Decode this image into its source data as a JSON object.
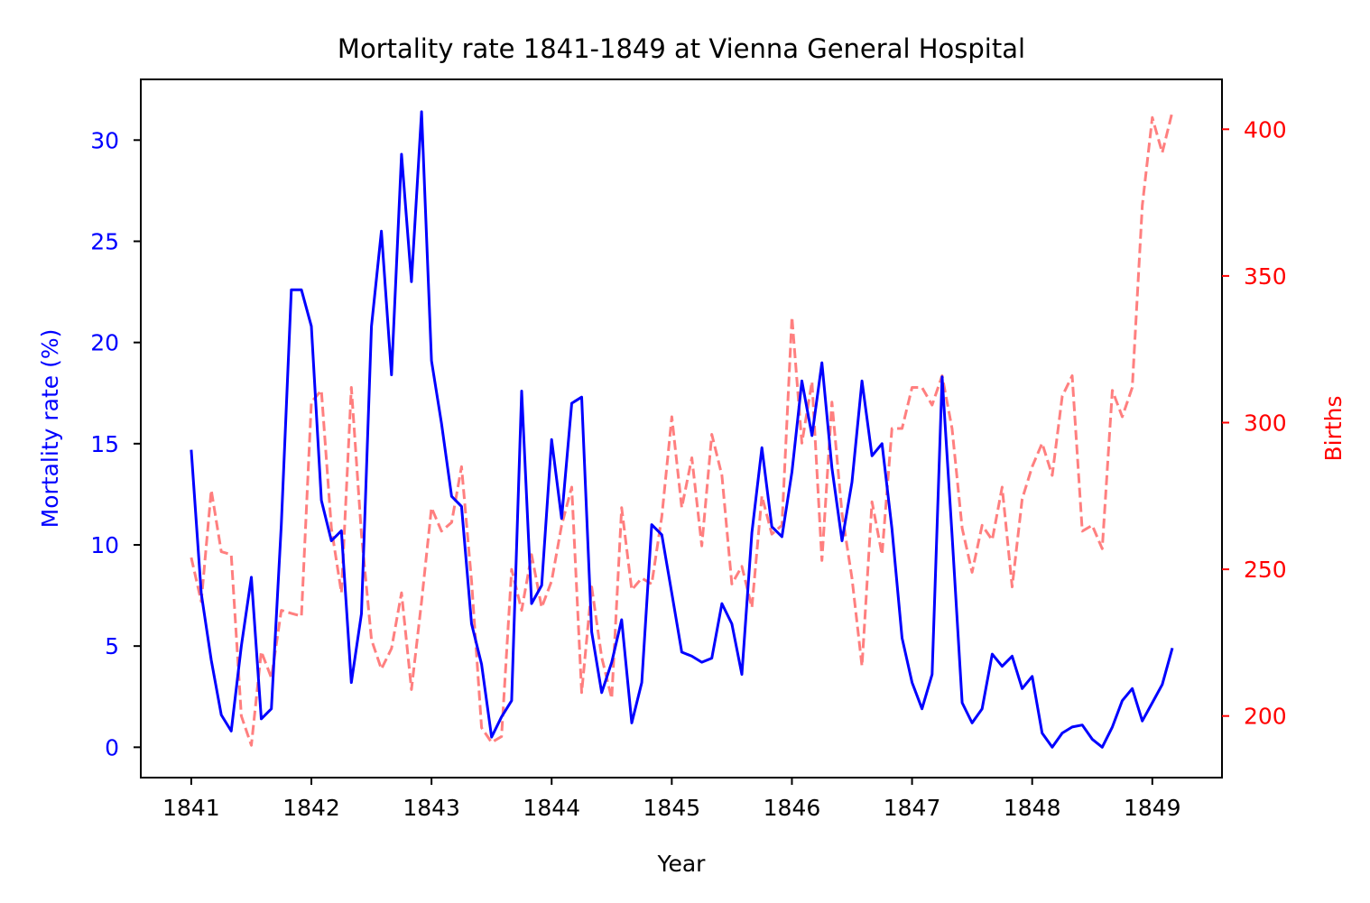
{
  "colors": {
    "primary_axis": "#0000ff",
    "secondary_axis": "#ff0000",
    "secondary_line": "#ff7f7f"
  },
  "chart_data": {
    "type": "line",
    "title": "Mortality rate 1841-1849 at Vienna General Hospital",
    "xlabel": "Year",
    "ylabel": "Mortality rate (%)",
    "y2label": "Births",
    "xlim": [
      1840.58,
      1849.58
    ],
    "ylim": [
      -1.5,
      33.0
    ],
    "y2lim": [
      179,
      417
    ],
    "xticks": [
      1841,
      1842,
      1843,
      1844,
      1845,
      1846,
      1847,
      1848,
      1849
    ],
    "yticks": [
      0,
      5,
      10,
      15,
      20,
      25,
      30
    ],
    "y2ticks": [
      200,
      250,
      300,
      350,
      400
    ],
    "grid": false,
    "legend": "none",
    "series": [
      {
        "axis": "left",
        "style": "solid",
        "x": [
          1841.0,
          1841.083,
          1841.167,
          1841.25,
          1841.333,
          1841.417,
          1841.5,
          1841.583,
          1841.667,
          1841.75,
          1841.833,
          1841.917,
          1842.0,
          1842.083,
          1842.167,
          1842.25,
          1842.333,
          1842.417,
          1842.5,
          1842.583,
          1842.667,
          1842.75,
          1842.833,
          1842.917,
          1843.0,
          1843.083,
          1843.167,
          1843.25,
          1843.333,
          1843.417,
          1843.5,
          1843.583,
          1843.667,
          1843.75,
          1843.833,
          1843.917,
          1844.0,
          1844.083,
          1844.167,
          1844.25,
          1844.333,
          1844.417,
          1844.5,
          1844.583,
          1844.667,
          1844.75,
          1844.833,
          1844.917,
          1845.0,
          1845.083,
          1845.167,
          1845.25,
          1845.333,
          1845.417,
          1845.5,
          1845.583,
          1845.667,
          1845.75,
          1845.833,
          1845.917,
          1846.0,
          1846.083,
          1846.167,
          1846.25,
          1846.333,
          1846.417,
          1846.5,
          1846.583,
          1846.667,
          1846.75,
          1846.833,
          1846.917,
          1847.0,
          1847.083,
          1847.167,
          1847.25,
          1847.333,
          1847.417,
          1847.5,
          1847.583,
          1847.667,
          1847.75,
          1847.833,
          1847.917,
          1848.0,
          1848.083,
          1848.167,
          1848.25,
          1848.333,
          1848.417,
          1848.5,
          1848.583,
          1848.667,
          1848.75,
          1848.833,
          1848.917,
          1849.0,
          1849.083,
          1849.167
        ],
        "values": [
          14.7,
          7.6,
          4.3,
          1.6,
          0.8,
          5.0,
          8.4,
          1.4,
          1.9,
          11.0,
          22.6,
          22.6,
          20.8,
          12.2,
          10.2,
          10.7,
          3.2,
          6.6,
          20.8,
          25.5,
          18.4,
          29.3,
          23.0,
          31.4,
          19.1,
          16.0,
          12.4,
          11.9,
          6.1,
          4.1,
          0.5,
          1.5,
          2.3,
          17.6,
          7.1,
          8.0,
          15.2,
          11.3,
          17.0,
          17.3,
          5.7,
          2.7,
          4.2,
          6.3,
          1.2,
          3.2,
          11.0,
          10.5,
          7.6,
          4.7,
          4.5,
          4.2,
          4.4,
          7.1,
          6.1,
          3.6,
          10.6,
          14.8,
          10.9,
          10.4,
          13.6,
          18.1,
          15.4,
          19.0,
          13.8,
          10.2,
          13.1,
          18.1,
          14.4,
          15.0,
          10.8,
          5.4,
          3.2,
          1.9,
          3.6,
          18.3,
          10.5,
          2.2,
          1.2,
          1.9,
          4.6,
          4.0,
          4.5,
          2.9,
          3.5,
          0.7,
          0.0,
          0.7,
          1.0,
          1.1,
          0.4,
          0.0,
          1.0,
          2.3,
          2.9,
          1.3,
          2.2,
          3.1,
          4.9
        ]
      },
      {
        "axis": "right",
        "style": "dashed",
        "x": [
          1841.0,
          1841.083,
          1841.167,
          1841.25,
          1841.333,
          1841.417,
          1841.5,
          1841.583,
          1841.667,
          1841.75,
          1841.833,
          1841.917,
          1842.0,
          1842.083,
          1842.167,
          1842.25,
          1842.333,
          1842.417,
          1842.5,
          1842.583,
          1842.667,
          1842.75,
          1842.833,
          1842.917,
          1843.0,
          1843.083,
          1843.167,
          1843.25,
          1843.333,
          1843.417,
          1843.5,
          1843.583,
          1843.667,
          1843.75,
          1843.833,
          1843.917,
          1844.0,
          1844.083,
          1844.167,
          1844.25,
          1844.333,
          1844.417,
          1844.5,
          1844.583,
          1844.667,
          1844.75,
          1844.833,
          1844.917,
          1845.0,
          1845.083,
          1845.167,
          1845.25,
          1845.333,
          1845.417,
          1845.5,
          1845.583,
          1845.667,
          1845.75,
          1845.833,
          1845.917,
          1846.0,
          1846.083,
          1846.167,
          1846.25,
          1846.333,
          1846.417,
          1846.5,
          1846.583,
          1846.667,
          1846.75,
          1846.833,
          1846.917,
          1847.0,
          1847.083,
          1847.167,
          1847.25,
          1847.333,
          1847.417,
          1847.5,
          1847.583,
          1847.667,
          1847.75,
          1847.833,
          1847.917,
          1848.0,
          1848.083,
          1848.167,
          1848.25,
          1848.333,
          1848.417,
          1848.5,
          1848.583,
          1848.667,
          1848.75,
          1848.833,
          1848.917,
          1849.0,
          1849.083,
          1849.167
        ],
        "values": [
          254,
          239,
          277,
          256,
          255,
          200,
          190,
          222,
          213,
          236,
          235,
          234,
          307,
          311,
          264,
          242,
          312,
          262,
          226,
          216,
          223,
          242,
          209,
          239,
          271,
          263,
          266,
          285,
          246,
          196,
          191,
          193,
          250,
          236,
          255,
          237,
          246,
          265,
          278,
          208,
          244,
          220,
          206,
          271,
          243,
          247,
          245,
          268,
          302,
          271,
          288,
          258,
          296,
          282,
          245,
          251,
          237,
          275,
          262,
          265,
          336,
          293,
          314,
          253,
          307,
          269,
          247,
          217,
          273,
          255,
          298,
          298,
          312,
          312,
          306,
          316,
          298,
          264,
          249,
          265,
          260,
          278,
          244,
          274,
          285,
          293,
          282,
          309,
          316,
          263,
          265,
          257,
          311,
          302,
          312,
          374,
          404,
          392,
          406
        ]
      }
    ]
  }
}
